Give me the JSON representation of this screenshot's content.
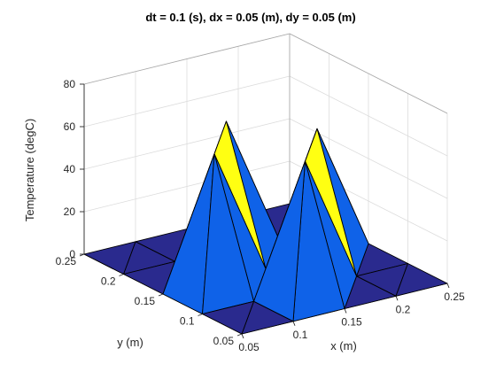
{
  "chart_data": {
    "type": "surface",
    "title": "dt = 0.1 (s), dx = 0.05 (m), dy = 0.05 (m)",
    "xlabel": "x (m)",
    "ylabel": "y (m)",
    "zlabel": "Temperature (degC)",
    "xlim": [
      0.05,
      0.25
    ],
    "ylim": [
      0.05,
      0.25
    ],
    "zlim": [
      0,
      80
    ],
    "xticks": [
      "0.05",
      "0.1",
      "0.15",
      "0.2",
      "0.25"
    ],
    "yticks": [
      "0.05",
      "0.1",
      "0.15",
      "0.2",
      "0.25"
    ],
    "zticks": [
      "0",
      "20",
      "40",
      "60",
      "80"
    ],
    "grid": true,
    "colors": {
      "high": "#ffff12",
      "mid": "#0f62e8",
      "low": "#2a2a8e",
      "light": "#1b8de8"
    },
    "x": [
      0.05,
      0.1,
      0.15,
      0.2,
      0.25
    ],
    "y": [
      0.05,
      0.1,
      0.15,
      0.2,
      0.25
    ],
    "z": [
      [
        0,
        0,
        0,
        0,
        0
      ],
      [
        0,
        0,
        60,
        0,
        0
      ],
      [
        0,
        60,
        0,
        60,
        0
      ],
      [
        0,
        0,
        60,
        0,
        0
      ],
      [
        0,
        0,
        0,
        0,
        0
      ]
    ]
  }
}
